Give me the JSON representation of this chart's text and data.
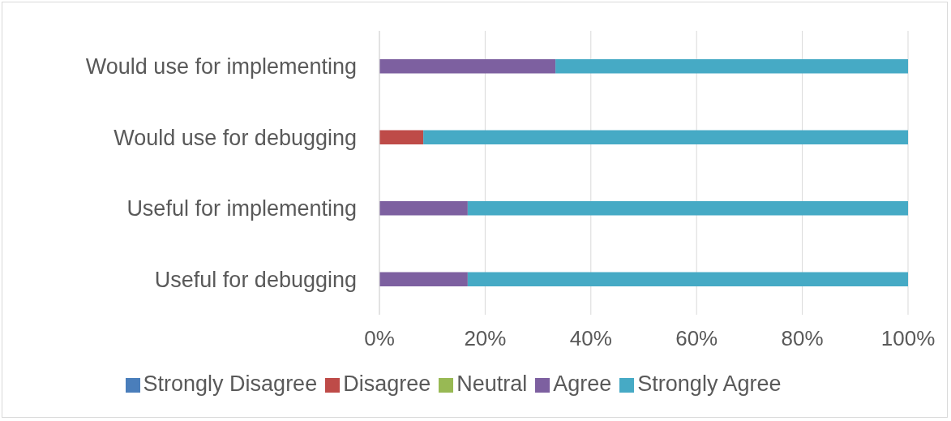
{
  "chart_data": {
    "type": "bar",
    "orientation": "horizontal",
    "stacked": true,
    "categories": [
      "Would use for implementing",
      "Would use for debugging",
      "Useful for implementing",
      "Useful for debugging"
    ],
    "series": [
      {
        "name": "Strongly Disagree",
        "color": "#4a7ebb",
        "values": [
          0,
          0,
          0,
          0
        ]
      },
      {
        "name": "Disagree",
        "color": "#be4b48",
        "values": [
          0,
          8.3,
          0,
          0
        ]
      },
      {
        "name": "Neutral",
        "color": "#98b954",
        "values": [
          0,
          0,
          0,
          0
        ]
      },
      {
        "name": "Agree",
        "color": "#7d60a0",
        "values": [
          33.3,
          0,
          16.7,
          16.7
        ]
      },
      {
        "name": "Strongly Agree",
        "color": "#46aac5",
        "values": [
          66.7,
          91.7,
          83.3,
          83.3
        ]
      }
    ],
    "xlim": [
      0,
      100
    ],
    "xticks": [
      {
        "value": 0,
        "label": "0%"
      },
      {
        "value": 20,
        "label": "20%"
      },
      {
        "value": 40,
        "label": "40%"
      },
      {
        "value": 60,
        "label": "60%"
      },
      {
        "value": 80,
        "label": "80%"
      },
      {
        "value": 100,
        "label": "100%"
      }
    ],
    "grid": "x",
    "legend": "bottom"
  }
}
